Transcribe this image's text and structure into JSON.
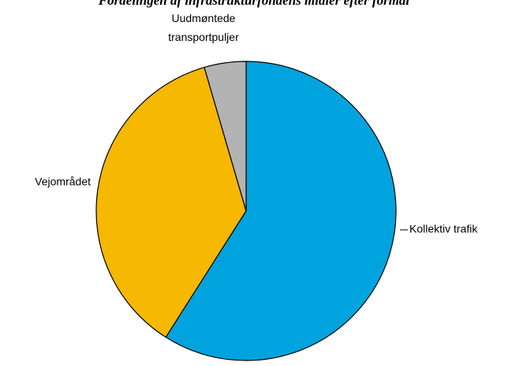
{
  "chart_data": {
    "type": "pie",
    "title": "Fordelingen af infrastrukturfondens midler efter formål",
    "slices": [
      {
        "label": "Kollektiv trafik",
        "value": 59,
        "color": "#00A3DD"
      },
      {
        "label": "Vejområdet",
        "value": 36.5,
        "color": "#F6B800"
      },
      {
        "label": "Uudmøntede transportpuljer",
        "label_lines": [
          "Uudmøntede",
          "transportpuljer"
        ],
        "value": 4.5,
        "color": "#B3B3B3"
      }
    ],
    "start_angle_deg": 0,
    "direction": "clockwise",
    "legend": "none"
  }
}
